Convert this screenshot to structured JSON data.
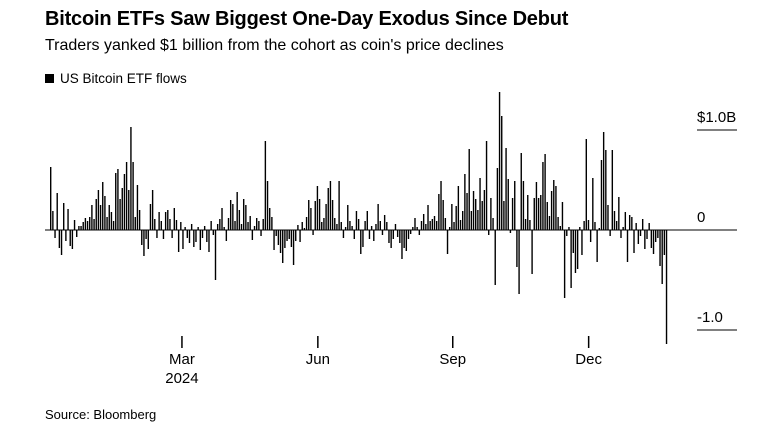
{
  "chart_data": {
    "type": "bar",
    "title": "Bitcoin ETFs Saw Biggest One-Day Exodus Since Debut",
    "subtitle": "Traders yanked $1 billion from the cohort as coin's price declines",
    "legend": {
      "label": "US Bitcoin ETF flows",
      "position": "top-left",
      "swatch_color": "#000000"
    },
    "unit": "billions USD, daily net flow",
    "bar_color": "#000000",
    "background_color": "#ffffff",
    "grid": false,
    "ylim": [
      -1.25,
      1.45
    ],
    "y_axis": {
      "side": "right",
      "ticks": [
        {
          "label": "$1.0B",
          "value": 1.0
        },
        {
          "label": "0",
          "value": 0
        },
        {
          "label": "-1.0",
          "value": -1.0
        }
      ]
    },
    "x_axis": {
      "ticks": [
        {
          "label": "Mar",
          "sublabel": "2024",
          "pos": 0.2135
        },
        {
          "label": "Jun",
          "pos": 0.4334
        },
        {
          "label": "Sep",
          "pos": 0.6517
        },
        {
          "label": "Dec",
          "pos": 0.8716
        }
      ]
    },
    "values": [
      0.63,
      0.19,
      -0.08,
      0.37,
      -0.18,
      -0.25,
      0.27,
      -0.11,
      0.21,
      -0.16,
      -0.19,
      0.1,
      -0.07,
      0.04,
      0.04,
      0.08,
      0.12,
      0.09,
      0.13,
      0.25,
      0.11,
      0.31,
      0.4,
      0.25,
      0.48,
      0.34,
      0.13,
      0.25,
      0.18,
      0.09,
      0.57,
      0.61,
      0.31,
      0.42,
      0.56,
      0.68,
      0.4,
      1.03,
      0.68,
      0.13,
      0.45,
      0.2,
      -0.15,
      -0.26,
      -0.09,
      -0.19,
      0.26,
      0.4,
      0.11,
      -0.08,
      0.18,
      0.09,
      -0.09,
      0.18,
      0.2,
      0.11,
      -0.08,
      0.22,
      0.1,
      -0.22,
      0.08,
      -0.19,
      0.03,
      -0.08,
      -0.13,
      0.06,
      -0.17,
      -0.12,
      0.03,
      -0.2,
      -0.08,
      0.04,
      -0.12,
      -0.22,
      0.09,
      -0.05,
      -0.5,
      0.06,
      0.11,
      0.22,
      0.03,
      -0.11,
      0.12,
      0.3,
      0.26,
      0.09,
      0.38,
      0.2,
      0.06,
      0.31,
      0.25,
      0.08,
      0.14,
      -0.1,
      0.04,
      0.12,
      0.09,
      -0.06,
      0.11,
      0.89,
      0.49,
      0.22,
      0.13,
      -0.2,
      -0.06,
      -0.15,
      -0.23,
      -0.33,
      -0.18,
      -0.11,
      -0.09,
      -0.17,
      -0.35,
      -0.11,
      0.05,
      -0.12,
      0.08,
      0.02,
      0.13,
      0.3,
      0.22,
      -0.05,
      0.29,
      0.44,
      0.31,
      0.08,
      0.12,
      0.26,
      0.42,
      0.49,
      0.3,
      0.12,
      0.06,
      0.49,
      0.08,
      -0.08,
      0.03,
      0.25,
      0.09,
      0.04,
      -0.09,
      0.19,
      0.11,
      -0.24,
      -0.17,
      0.09,
      0.19,
      -0.09,
      0.04,
      -0.11,
      0.06,
      0.26,
      0.09,
      -0.05,
      0.15,
      0.08,
      -0.13,
      -0.18,
      -0.09,
      0.06,
      -0.07,
      -0.13,
      -0.29,
      -0.18,
      -0.21,
      -0.09,
      -0.04,
      0.03,
      0.12,
      0.03,
      -0.05,
      0.09,
      0.16,
      0.06,
      0.25,
      0.09,
      0.11,
      0.14,
      0.09,
      0.36,
      0.49,
      0.3,
      0.12,
      -0.24,
      0.03,
      0.26,
      0.08,
      0.24,
      0.44,
      0.1,
      0.19,
      0.56,
      0.37,
      0.81,
      0.19,
      0.39,
      0.31,
      0.2,
      0.52,
      0.29,
      0.4,
      0.89,
      -0.05,
      0.32,
      0.12,
      -0.55,
      0.62,
      1.38,
      1.14,
      0.29,
      0.82,
      0.51,
      -0.03,
      0.32,
      0.49,
      -0.37,
      -0.64,
      0.77,
      0.49,
      0.11,
      0.35,
      0.1,
      -0.44,
      0.32,
      0.48,
      0.32,
      0.35,
      0.68,
      0.76,
      0.28,
      0.14,
      0.39,
      0.5,
      0.44,
      0.13,
      0.04,
      0.28,
      -0.68,
      -0.06,
      0.03,
      -0.58,
      -0.23,
      -0.43,
      -0.39,
      0.03,
      -0.25,
      0.09,
      0.91,
      0.1,
      -0.12,
      0.52,
      0.08,
      -0.32,
      0.02,
      0.7,
      0.98,
      0.8,
      0.25,
      -0.06,
      0.8,
      0.19,
      0.09,
      0.33,
      -0.08,
      0.03,
      0.18,
      -0.32,
      0.15,
      0.13,
      -0.23,
      0.07,
      -0.14,
      -0.06,
      0.11,
      -0.19,
      -0.09,
      0.07,
      -0.18,
      -0.24,
      -0.12,
      -0.08,
      -0.36,
      -0.54,
      -0.25,
      -1.14
    ]
  },
  "footer": {
    "source": "Source: Bloomberg"
  }
}
